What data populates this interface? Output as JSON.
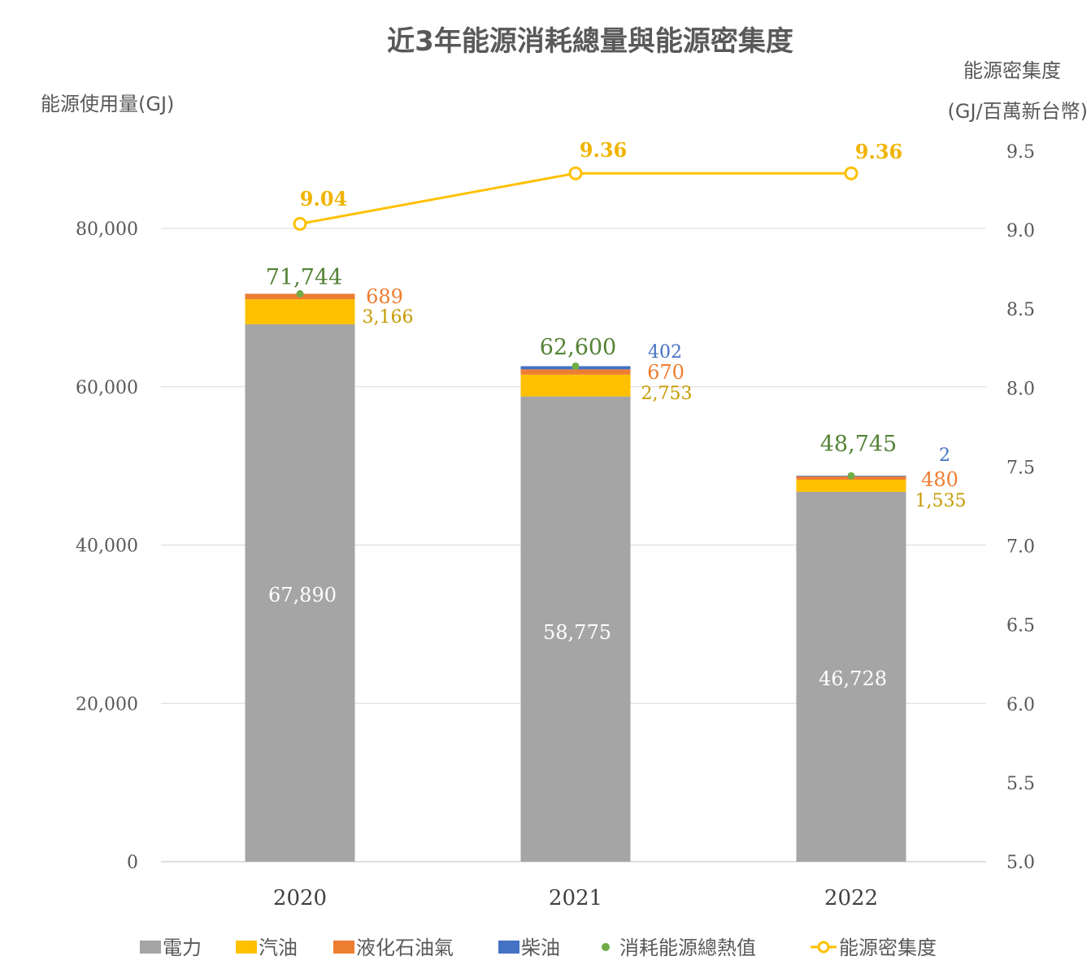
{
  "colors": {
    "electricity": "#a5a5a5",
    "gasoline": "#ffc000",
    "lpg": "#ed7d31",
    "diesel": "#4472c4",
    "total_marker": "#70ad47",
    "total_label": "#548235",
    "intensity": "#ffc000",
    "intensity_label": "#f0b400",
    "gasoline_label": "#c59a00",
    "diesel_label": "#4472c4",
    "grid": "#d9d9d9"
  },
  "chart_data": {
    "type": "bar",
    "stacked": true,
    "title": "近3年能源消耗總量與能源密集度",
    "ylabel": "能源使用量(GJ)",
    "y2label_line1": "能源密集度",
    "y2label_line2": "(GJ/百萬新台幣)",
    "categories": [
      "2020",
      "2021",
      "2022"
    ],
    "ylim": [
      0,
      80000
    ],
    "yticks": [
      0,
      20000,
      40000,
      60000,
      80000
    ],
    "ytick_labels": [
      "0",
      "20,000",
      "40,000",
      "60,000",
      "80,000"
    ],
    "y2lim": [
      5.0,
      9.5
    ],
    "y2ticks": [
      5.0,
      5.5,
      6.0,
      6.5,
      7.0,
      7.5,
      8.0,
      8.5,
      9.0,
      9.5
    ],
    "y2tick_labels": [
      "5.0",
      "5.5",
      "6.0",
      "6.5",
      "7.0",
      "7.5",
      "8.0",
      "8.5",
      "9.0",
      "9.5"
    ],
    "grid": true,
    "legend_position": "bottom",
    "series": [
      {
        "name": "電力",
        "key": "electricity",
        "values": [
          67890,
          58775,
          46728
        ],
        "labels": [
          "67,890",
          "58,775",
          "46,728"
        ]
      },
      {
        "name": "汽油",
        "key": "gasoline",
        "values": [
          3166,
          2753,
          1535
        ],
        "labels": [
          "3,166",
          "2,753",
          "1,535"
        ]
      },
      {
        "name": "液化石油氣",
        "key": "lpg",
        "values": [
          689,
          670,
          480
        ],
        "labels": [
          "689",
          "670",
          "480"
        ]
      },
      {
        "name": "柴油",
        "key": "diesel",
        "values": [
          0,
          402,
          2
        ],
        "labels": [
          "",
          "402",
          "2"
        ]
      }
    ],
    "totals": {
      "name": "消耗能源總熱值",
      "values": [
        71744,
        62600,
        48745
      ],
      "labels": [
        "71,744",
        "62,600",
        "48,745"
      ]
    },
    "intensity": {
      "name": "能源密集度",
      "values": [
        9.04,
        9.36,
        9.36
      ],
      "labels": [
        "9.04",
        "9.36",
        "9.36"
      ]
    }
  }
}
